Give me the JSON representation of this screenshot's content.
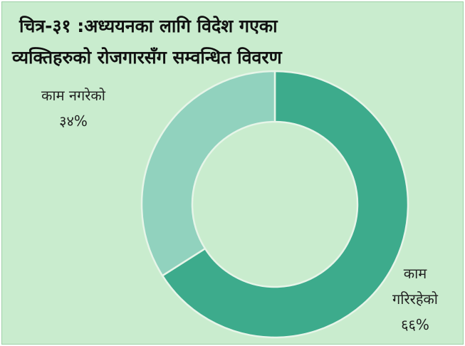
{
  "chart_data": {
    "type": "pie",
    "title_lines": [
      "चित्र-३१ :अध्ययनका लागि विदेश गएका",
      "व्यक्तिहरुको रोजगारसँग सम्वन्धित विवरण"
    ],
    "donut": true,
    "slices": [
      {
        "label_lines": [
          "काम",
          "गरिरहेको"
        ],
        "value": 66,
        "value_label": "६६%",
        "color": "#3dab8c"
      },
      {
        "label_lines": [
          "काम नगरेको"
        ],
        "value": 34,
        "value_label": "३४%",
        "color": "#91d2be"
      }
    ]
  }
}
